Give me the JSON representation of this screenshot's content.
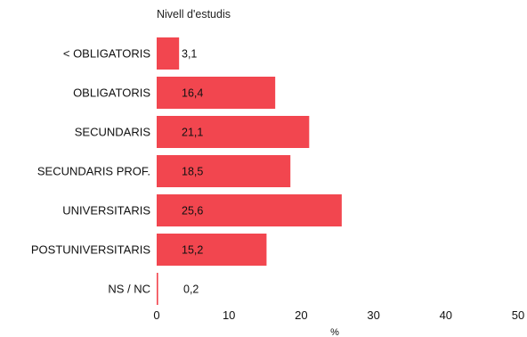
{
  "chart_data": {
    "type": "bar",
    "orientation": "horizontal",
    "title": "Nivell d'estudis",
    "xlabel": "%",
    "ylabel": "",
    "categories": [
      "< OBLIGATORIS",
      "OBLIGATORIS",
      "SECUNDARIS",
      "SECUNDARIS PROF.",
      "UNIVERSITARIS",
      "POSTUNIVERSITARIS",
      "NS / NC"
    ],
    "values": [
      3.1,
      16.4,
      21.1,
      18.5,
      25.6,
      15.2,
      0.2
    ],
    "value_labels": [
      "3,1",
      "16,4",
      "21,1",
      "18,5",
      "25,6",
      "15,2",
      "0,2"
    ],
    "xlim": [
      0,
      50
    ],
    "xticks": [
      0,
      10,
      20,
      30,
      40,
      50
    ],
    "grid": false,
    "bar_color": "#f2464f"
  }
}
